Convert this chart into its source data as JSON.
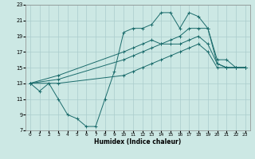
{
  "xlabel": "Humidex (Indice chaleur)",
  "bg_color": "#cce8e4",
  "grid_color": "#aacccc",
  "line_color": "#1a6b6b",
  "xlim": [
    -0.5,
    23.5
  ],
  "ylim": [
    7,
    23
  ],
  "xticks": [
    0,
    1,
    2,
    3,
    4,
    5,
    6,
    7,
    8,
    9,
    10,
    11,
    12,
    13,
    14,
    15,
    16,
    17,
    18,
    19,
    20,
    21,
    22,
    23
  ],
  "yticks": [
    7,
    9,
    11,
    13,
    15,
    17,
    19,
    21,
    23
  ],
  "line1_x": [
    0,
    1,
    2,
    3,
    4,
    5,
    6,
    7,
    8,
    9,
    10,
    11,
    12,
    13,
    14,
    15,
    16,
    17,
    18,
    19,
    20,
    21,
    22,
    23
  ],
  "line1_y": [
    13,
    12,
    13,
    11,
    9,
    8.5,
    7.5,
    7.5,
    11,
    14.5,
    19.5,
    20,
    20,
    20.5,
    22,
    22,
    20,
    22,
    21.5,
    20,
    15.5,
    15,
    15,
    15
  ],
  "line2_x": [
    0,
    3,
    10,
    11,
    12,
    13,
    14,
    15,
    16,
    17,
    18,
    19,
    20,
    21,
    22,
    23
  ],
  "line2_y": [
    13,
    14,
    17,
    17.5,
    18,
    18.5,
    18,
    18.5,
    19,
    20,
    20,
    20,
    16,
    16,
    15,
    15
  ],
  "line3_x": [
    0,
    3,
    10,
    11,
    12,
    13,
    14,
    15,
    16,
    17,
    18,
    19,
    20,
    21,
    22,
    23
  ],
  "line3_y": [
    13,
    13.5,
    16,
    16.5,
    17,
    17.5,
    18,
    18,
    18,
    18.5,
    19,
    18,
    15.5,
    15,
    15,
    15
  ],
  "line4_x": [
    0,
    3,
    10,
    11,
    12,
    13,
    14,
    15,
    16,
    17,
    18,
    19,
    20,
    21,
    22,
    23
  ],
  "line4_y": [
    13,
    13,
    14,
    14.5,
    15,
    15.5,
    16,
    16.5,
    17,
    17.5,
    18,
    17,
    15,
    15,
    15,
    15
  ]
}
